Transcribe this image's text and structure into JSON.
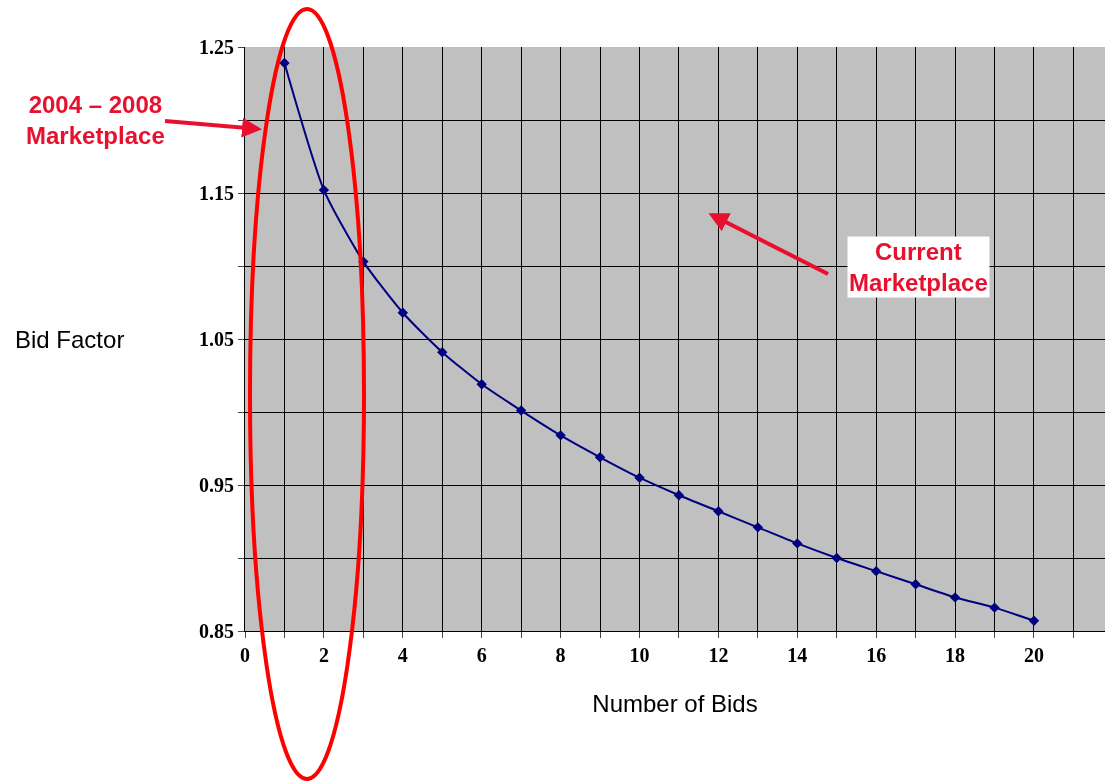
{
  "chart_data": {
    "type": "line",
    "xlabel": "Number of Bids",
    "ylabel": "Bid Factor",
    "x": [
      1,
      2,
      3,
      4,
      5,
      6,
      7,
      8,
      9,
      10,
      11,
      12,
      13,
      14,
      15,
      16,
      17,
      18,
      19,
      20
    ],
    "series": [
      {
        "color": "#000080",
        "values": [
          1.239,
          1.152,
          1.103,
          1.068,
          1.041,
          1.019,
          1.001,
          0.984,
          0.969,
          0.955,
          0.943,
          0.932,
          0.921,
          0.91,
          0.9,
          0.891,
          0.882,
          0.873,
          0.866,
          0.857
        ]
      }
    ],
    "xlim": [
      0,
      21.8
    ],
    "xticks": [
      0,
      {
        "value": 1,
        "label": null
      },
      2,
      {
        "value": 3,
        "label": null
      },
      4,
      {
        "value": 5,
        "label": null
      },
      6,
      {
        "value": 7,
        "label": null
      },
      8,
      {
        "value": 9,
        "label": null
      },
      10,
      {
        "value": 11,
        "label": null
      },
      12,
      {
        "value": 13,
        "label": null
      },
      14,
      {
        "value": 15,
        "label": null
      },
      16,
      {
        "value": 17,
        "label": null
      },
      18,
      {
        "value": 19,
        "label": null
      },
      20,
      {
        "value": 21,
        "label": null
      }
    ],
    "ylim": [
      0.85,
      1.25
    ],
    "yticks": [
      0.85,
      {
        "value": 0.9,
        "label": null
      },
      0.95,
      {
        "value": 1.0,
        "label": null
      },
      1.05,
      {
        "value": 1.1,
        "label": null
      },
      1.15,
      {
        "value": 1.2,
        "label": null
      },
      1.25
    ],
    "grid": true,
    "marker": "diamond",
    "line_style": "solid",
    "annotations": [
      "2004 – 2008 Marketplace",
      "Current Marketplace"
    ]
  }
}
